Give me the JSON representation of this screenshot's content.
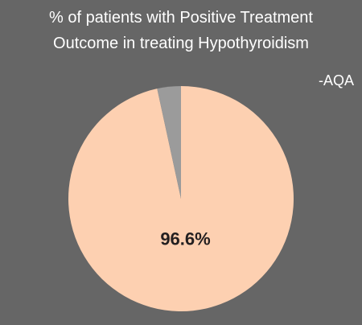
{
  "chart_data": {
    "type": "pie",
    "title": "% of patients with Positive Treatment Outcome in treating Hypothyroidism",
    "annotation": "-AQA",
    "categories": [
      null,
      null
    ],
    "values": [
      96.6,
      3.4
    ],
    "value_labels": [
      "96.6%",
      null
    ],
    "colors": [
      "#fdd0b1",
      "#9b9b9b"
    ]
  }
}
